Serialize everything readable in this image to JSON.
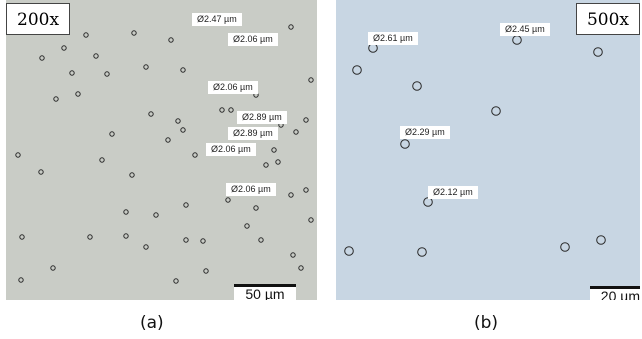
{
  "panels": [
    {
      "id": "a",
      "caption": "(a)",
      "magnification": "200x",
      "scale_bar": "50 µm",
      "measurements": [
        "Ø2.47 µm",
        "Ø2.06 µm",
        "Ø2.06 µm",
        "Ø2.89 µm",
        "Ø2.89 µm",
        "Ø2.06 µm",
        "Ø2.06 µm"
      ],
      "background_color": "#c9ccc6"
    },
    {
      "id": "b",
      "caption": "(b)",
      "magnification": "500x",
      "scale_bar": "20 µm",
      "measurements": [
        "Ø2.61 µm",
        "Ø2.45 µm",
        "Ø2.29 µm",
        "Ø2.12 µm"
      ],
      "background_color": "#c8d6e3"
    }
  ]
}
